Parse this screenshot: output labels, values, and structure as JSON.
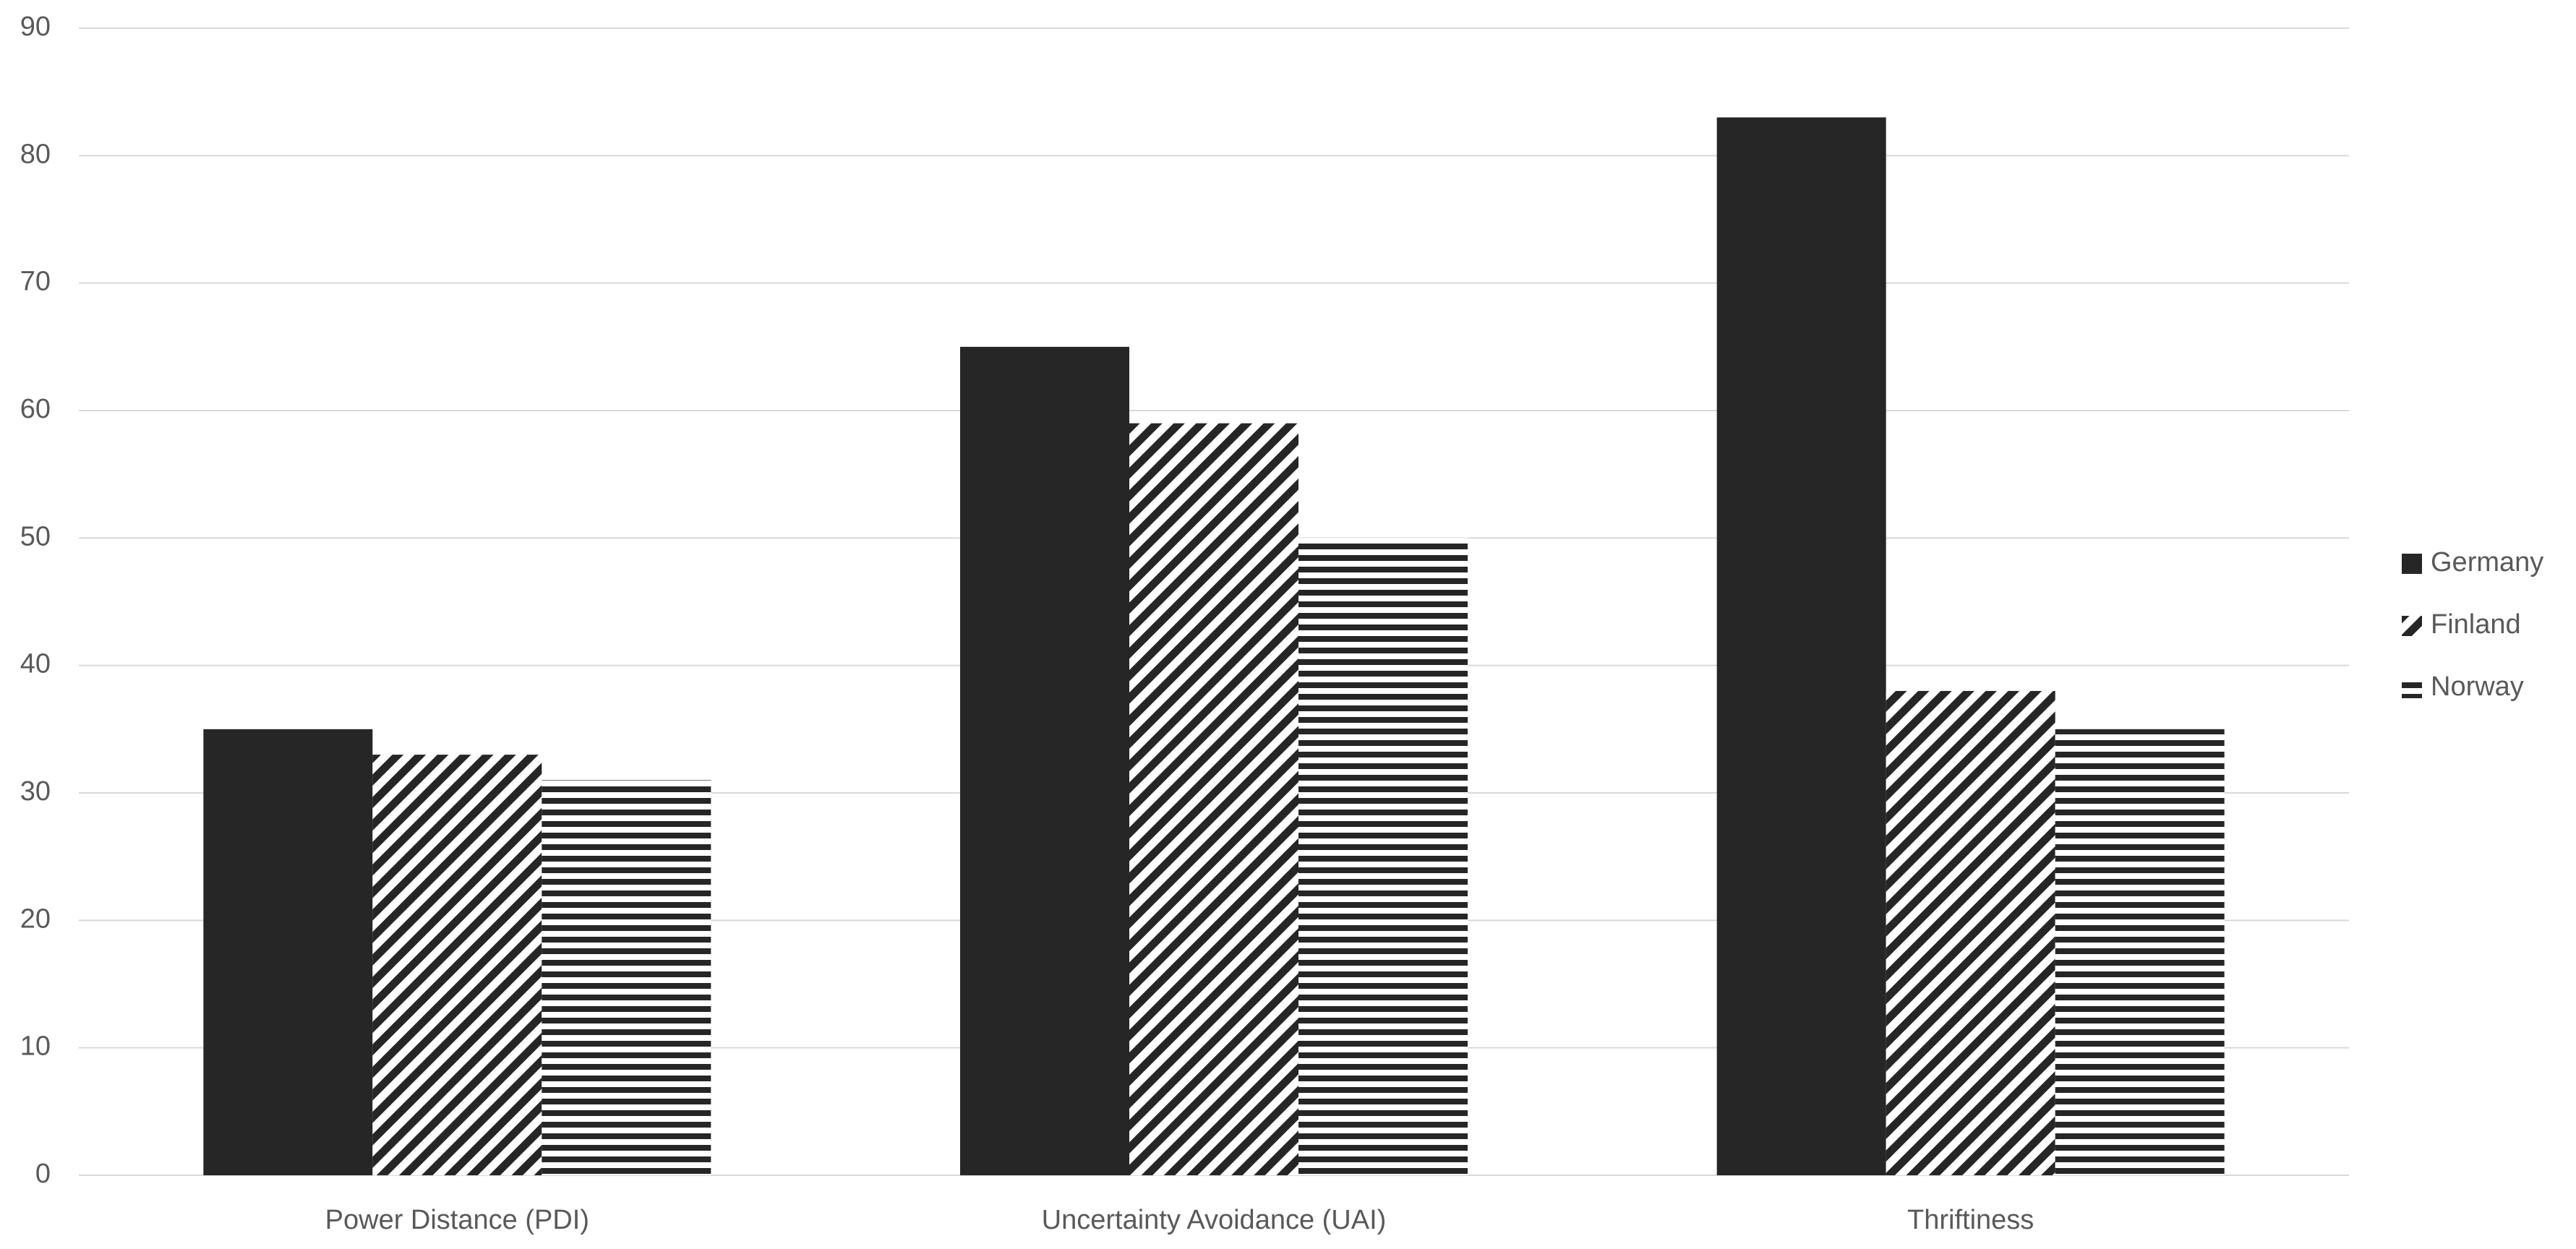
{
  "chart_data": {
    "type": "bar",
    "categories": [
      "Power Distance (PDI)",
      "Uncertainty Avoidance (UAI)",
      "Thriftiness"
    ],
    "series": [
      {
        "name": "Germany",
        "color": "#262626",
        "pattern": "solid",
        "values": [
          35,
          65,
          83
        ]
      },
      {
        "name": "Finland",
        "color": "#262626",
        "pattern": "diagonal",
        "values": [
          33,
          59,
          38
        ]
      },
      {
        "name": "Norway",
        "color": "#262626",
        "pattern": "horizontal",
        "values": [
          31,
          50,
          35
        ]
      }
    ],
    "ylim": [
      0,
      90
    ],
    "yticks": [
      0,
      10,
      20,
      30,
      40,
      50,
      60,
      70,
      80,
      90
    ],
    "grid": true,
    "legend": "right"
  }
}
